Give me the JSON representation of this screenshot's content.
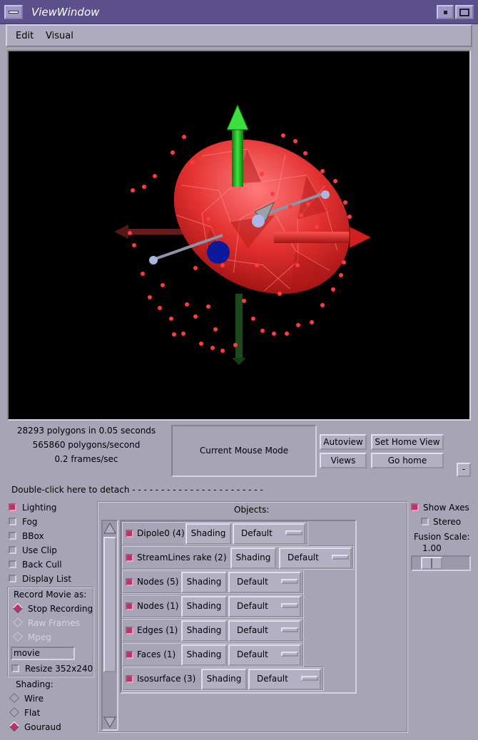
{
  "window": {
    "title": "ViewWindow"
  },
  "menubar": {
    "items": [
      {
        "label": "Edit"
      },
      {
        "label": "Visual"
      }
    ]
  },
  "stats": {
    "polygons": "28293 polygons in 0.05 seconds",
    "rate": "565860 polygons/second",
    "fps": "0.2 frames/sec"
  },
  "mouse_mode": "Current Mouse Mode",
  "buttons": {
    "autoview": "Autoview",
    "set_home_view": "Set Home View",
    "views": "Views",
    "go_home": "Go home",
    "collapse": "-"
  },
  "detach_text": "Double-click here to detach - - - - - - - - - - - - - - - - - - - - - - -",
  "left_options": [
    {
      "label": "Lighting",
      "checked": true
    },
    {
      "label": "Fog",
      "checked": false
    },
    {
      "label": "BBox",
      "checked": false
    },
    {
      "label": "Use Clip",
      "checked": false
    },
    {
      "label": "Back Cull",
      "checked": false
    },
    {
      "label": "Display List",
      "checked": false
    }
  ],
  "record": {
    "title": "Record Movie as:",
    "options": [
      {
        "label": "Stop Recording",
        "selected": true,
        "enabled": true
      },
      {
        "label": "Raw Frames",
        "selected": false,
        "enabled": false
      },
      {
        "label": "Mpeg",
        "selected": false,
        "enabled": false
      }
    ],
    "filename": "movie",
    "resize_label": "Resize 352x240",
    "resize_checked": false
  },
  "shading": {
    "title": "Shading:",
    "options": [
      {
        "label": "Wire",
        "selected": false
      },
      {
        "label": "Flat",
        "selected": false
      },
      {
        "label": "Gouraud",
        "selected": true
      }
    ]
  },
  "objects": {
    "title": "Objects:",
    "shading_label": "Shading",
    "items": [
      {
        "label": "Dipole0 (4)",
        "checked": true,
        "mode": "Default"
      },
      {
        "label": "StreamLines rake (2)",
        "checked": true,
        "mode": "Default"
      },
      {
        "label": "Nodes (5)",
        "checked": true,
        "mode": "Default"
      },
      {
        "label": "Nodes (1)",
        "checked": true,
        "mode": "Default"
      },
      {
        "label": "Edges (1)",
        "checked": true,
        "mode": "Default"
      },
      {
        "label": "Faces (1)",
        "checked": true,
        "mode": "Default"
      },
      {
        "label": "Isosurface (3)",
        "checked": true,
        "mode": "Default"
      }
    ]
  },
  "right_options": {
    "show_axes": {
      "label": "Show Axes",
      "checked": true
    },
    "stereo": {
      "label": "Stereo",
      "checked": false
    },
    "fusion_label": "Fusion Scale:",
    "fusion_value": "1.00"
  },
  "colors": {
    "titlebar": "#5b4f8c",
    "panel": "#a7a4b5",
    "check_on": "#c0306a",
    "mesh": "#e83a3a"
  }
}
